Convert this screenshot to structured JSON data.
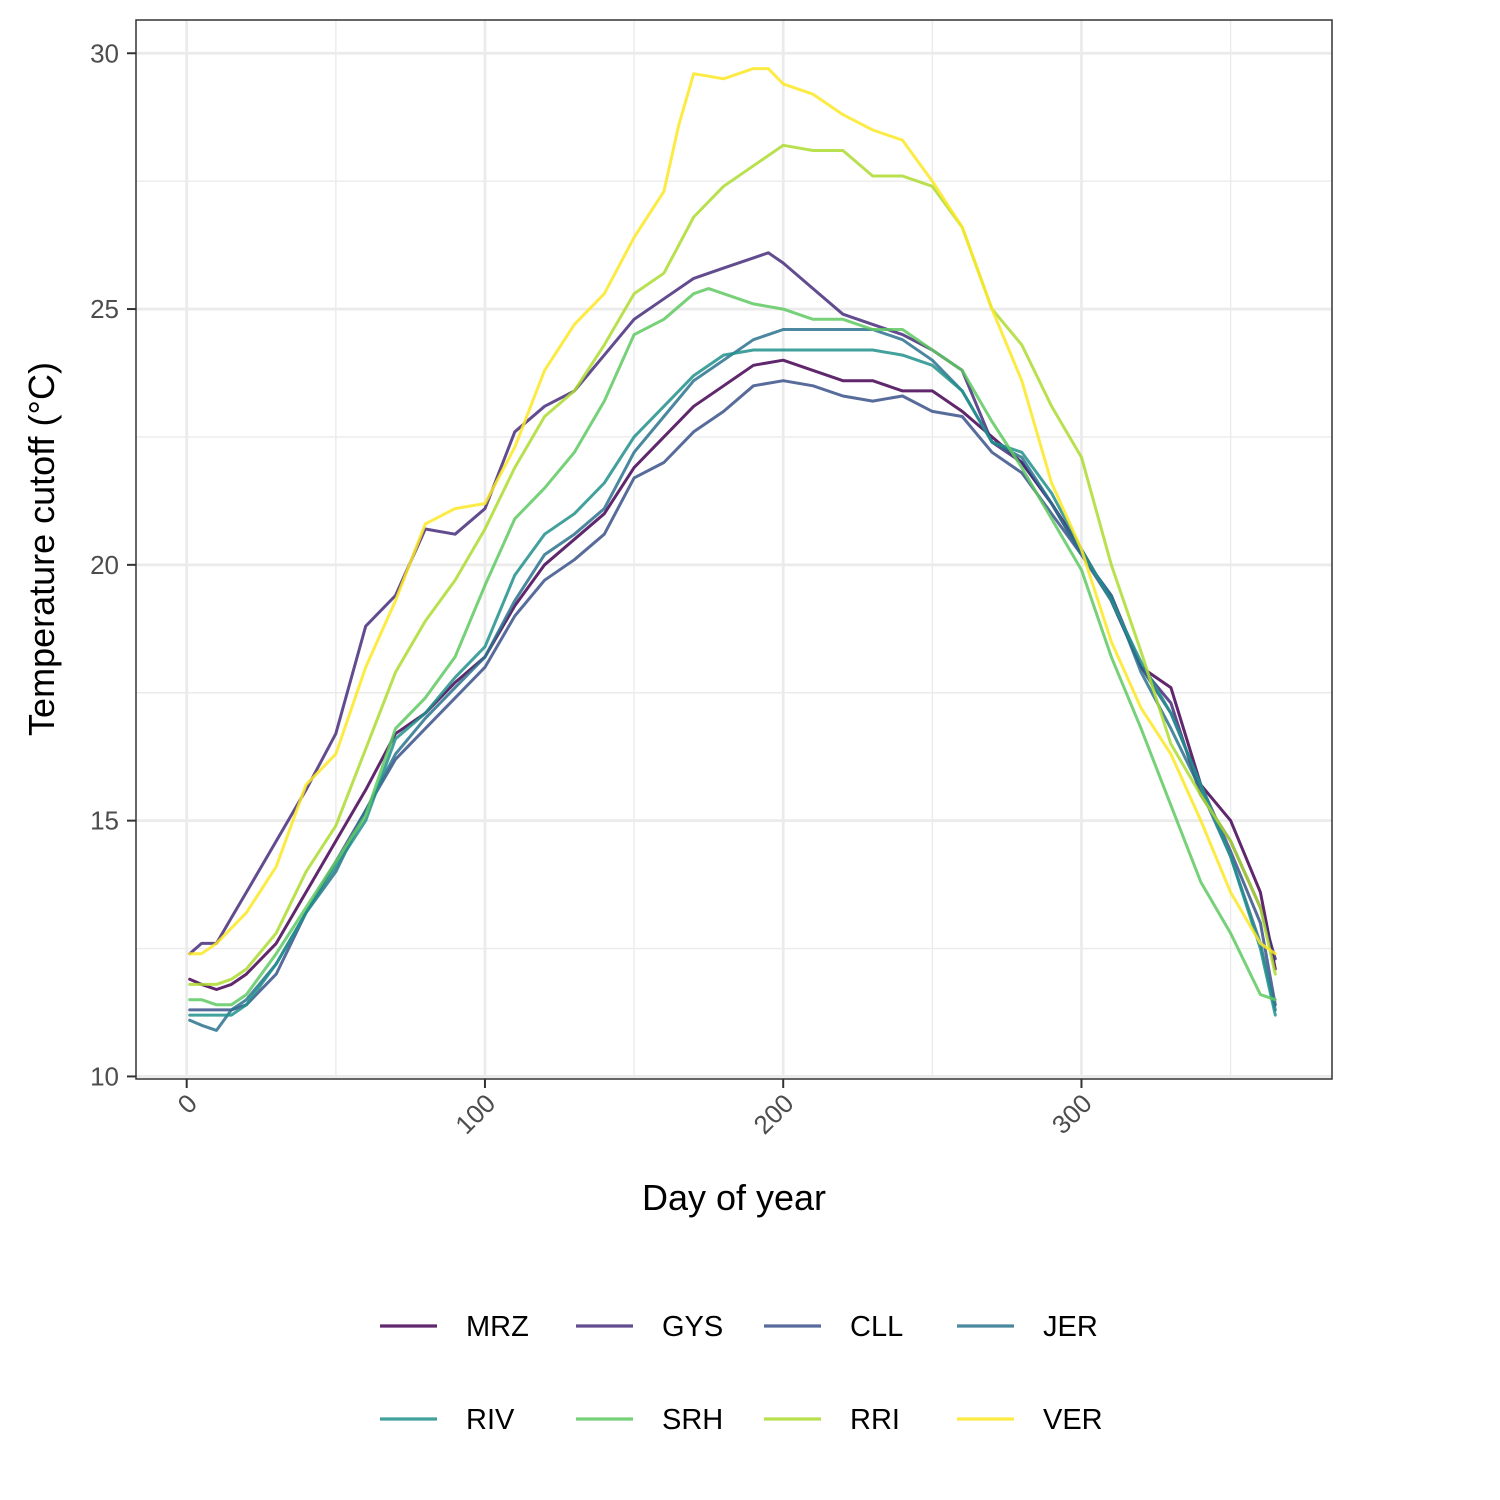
{
  "chart_data": {
    "type": "line",
    "xlabel": "Day of year",
    "ylabel": "Temperature cutoff (°C)",
    "xlim": [
      -17,
      384
    ],
    "ylim": [
      9.95,
      30.65
    ],
    "x_ticks": [
      0,
      100,
      200,
      300
    ],
    "x_tick_labels": [
      "0",
      "100",
      "200",
      "300"
    ],
    "y_ticks": [
      10,
      15,
      20,
      25,
      30
    ],
    "y_tick_labels": [
      "10",
      "15",
      "20",
      "25",
      "30"
    ],
    "grid": true,
    "legend": {
      "position": "bottom"
    },
    "series": [
      {
        "name": "MRZ",
        "color": "#440154",
        "x": [
          1,
          5,
          10,
          15,
          20,
          30,
          40,
          50,
          60,
          70,
          80,
          90,
          100,
          110,
          120,
          130,
          140,
          150,
          160,
          170,
          180,
          190,
          200,
          210,
          220,
          230,
          240,
          250,
          260,
          270,
          280,
          290,
          300,
          310,
          320,
          330,
          340,
          350,
          360,
          365
        ],
        "y": [
          11.9,
          11.8,
          11.7,
          11.8,
          12.0,
          12.6,
          13.6,
          14.6,
          15.6,
          16.7,
          17.1,
          17.7,
          18.2,
          19.2,
          20.0,
          20.5,
          21.0,
          21.9,
          22.5,
          23.1,
          23.5,
          23.9,
          24.0,
          23.8,
          23.6,
          23.6,
          23.4,
          23.4,
          23.0,
          22.5,
          22.0,
          21.2,
          20.3,
          19.3,
          18.0,
          17.6,
          15.7,
          15.0,
          13.6,
          12.1
        ]
      },
      {
        "name": "GYS",
        "color": "#472d7b",
        "x": [
          1,
          5,
          10,
          15,
          20,
          30,
          40,
          50,
          60,
          70,
          80,
          90,
          100,
          110,
          120,
          130,
          140,
          150,
          160,
          170,
          180,
          190,
          195,
          200,
          210,
          220,
          230,
          240,
          250,
          260,
          270,
          280,
          290,
          300,
          310,
          320,
          330,
          340,
          350,
          360,
          365
        ],
        "y": [
          12.4,
          12.6,
          12.6,
          13.1,
          13.6,
          14.6,
          15.6,
          16.7,
          18.8,
          19.4,
          20.7,
          20.6,
          21.1,
          22.6,
          23.1,
          23.4,
          24.1,
          24.8,
          25.2,
          25.6,
          25.8,
          26.0,
          26.1,
          25.9,
          25.4,
          24.9,
          24.7,
          24.5,
          24.2,
          23.8,
          22.4,
          22.0,
          21.2,
          20.2,
          19.4,
          18.0,
          17.3,
          15.5,
          14.6,
          13.3,
          12.3
        ]
      },
      {
        "name": "CLL",
        "color": "#3b528b",
        "x": [
          1,
          5,
          10,
          15,
          20,
          30,
          40,
          50,
          60,
          70,
          80,
          90,
          100,
          110,
          120,
          130,
          140,
          150,
          160,
          170,
          180,
          190,
          200,
          210,
          220,
          230,
          240,
          250,
          260,
          270,
          280,
          290,
          300,
          310,
          320,
          330,
          340,
          350,
          360,
          365
        ],
        "y": [
          11.3,
          11.3,
          11.3,
          11.3,
          11.4,
          12.0,
          13.2,
          14.2,
          15.2,
          16.2,
          16.8,
          17.4,
          18.0,
          19.0,
          19.7,
          20.1,
          20.6,
          21.7,
          22.0,
          22.6,
          23.0,
          23.5,
          23.6,
          23.5,
          23.3,
          23.2,
          23.3,
          23.0,
          22.9,
          22.2,
          21.8,
          21.0,
          20.2,
          19.3,
          18.0,
          17.1,
          15.7,
          14.4,
          13.0,
          11.4
        ]
      },
      {
        "name": "JER",
        "color": "#2c728e",
        "x": [
          1,
          5,
          10,
          15,
          20,
          30,
          40,
          50,
          60,
          70,
          80,
          90,
          100,
          110,
          120,
          130,
          140,
          150,
          160,
          170,
          180,
          190,
          200,
          210,
          220,
          230,
          240,
          250,
          260,
          270,
          280,
          290,
          300,
          310,
          320,
          330,
          340,
          350,
          360,
          365
        ],
        "y": [
          11.1,
          11.0,
          10.9,
          11.3,
          11.5,
          12.2,
          13.2,
          14.0,
          15.2,
          16.3,
          17.0,
          17.6,
          18.2,
          19.3,
          20.2,
          20.6,
          21.1,
          22.2,
          22.9,
          23.6,
          24.0,
          24.4,
          24.6,
          24.6,
          24.6,
          24.6,
          24.4,
          24.0,
          23.4,
          22.4,
          22.1,
          21.2,
          20.2,
          19.4,
          17.9,
          16.8,
          15.6,
          14.3,
          12.6,
          11.3
        ]
      },
      {
        "name": "RIV",
        "color": "#21918c",
        "x": [
          1,
          5,
          10,
          15,
          20,
          30,
          40,
          50,
          60,
          70,
          80,
          90,
          100,
          110,
          120,
          130,
          140,
          150,
          160,
          170,
          180,
          190,
          200,
          210,
          220,
          230,
          240,
          250,
          260,
          270,
          280,
          290,
          300,
          310,
          320,
          330,
          340,
          350,
          360,
          365
        ],
        "y": [
          11.2,
          11.2,
          11.2,
          11.2,
          11.4,
          12.2,
          13.2,
          14.1,
          15.0,
          16.6,
          17.1,
          17.8,
          18.4,
          19.8,
          20.6,
          21.0,
          21.6,
          22.5,
          23.1,
          23.7,
          24.1,
          24.2,
          24.2,
          24.2,
          24.2,
          24.2,
          24.1,
          23.9,
          23.4,
          22.4,
          22.2,
          21.4,
          20.3,
          19.3,
          18.1,
          17.1,
          15.7,
          14.3,
          12.5,
          11.2
        ]
      },
      {
        "name": "SRH",
        "color": "#5ec962",
        "x": [
          1,
          5,
          10,
          15,
          20,
          30,
          40,
          50,
          60,
          70,
          80,
          90,
          100,
          110,
          120,
          130,
          140,
          150,
          160,
          170,
          175,
          180,
          190,
          200,
          210,
          220,
          230,
          240,
          250,
          260,
          270,
          280,
          290,
          300,
          310,
          320,
          330,
          340,
          350,
          360,
          365
        ],
        "y": [
          11.5,
          11.5,
          11.4,
          11.4,
          11.6,
          12.4,
          13.3,
          14.2,
          15.1,
          16.8,
          17.4,
          18.2,
          19.6,
          20.9,
          21.5,
          22.2,
          23.2,
          24.5,
          24.8,
          25.3,
          25.4,
          25.3,
          25.1,
          25.0,
          24.8,
          24.8,
          24.6,
          24.6,
          24.2,
          23.8,
          22.8,
          21.9,
          20.9,
          19.9,
          18.2,
          16.8,
          15.3,
          13.8,
          12.8,
          11.6,
          11.5
        ]
      },
      {
        "name": "RRI",
        "color": "#addc30",
        "x": [
          1,
          5,
          10,
          15,
          20,
          30,
          40,
          50,
          60,
          70,
          80,
          90,
          100,
          110,
          120,
          130,
          140,
          150,
          160,
          170,
          180,
          190,
          200,
          210,
          220,
          230,
          240,
          250,
          260,
          270,
          280,
          290,
          300,
          310,
          320,
          330,
          340,
          350,
          360,
          365
        ],
        "y": [
          11.8,
          11.8,
          11.8,
          11.9,
          12.1,
          12.8,
          14.0,
          14.9,
          16.4,
          17.9,
          18.9,
          19.7,
          20.7,
          21.9,
          22.9,
          23.4,
          24.3,
          25.3,
          25.7,
          26.8,
          27.4,
          27.8,
          28.2,
          28.1,
          28.1,
          27.6,
          27.6,
          27.4,
          26.6,
          25.0,
          24.3,
          23.1,
          22.1,
          20.0,
          18.3,
          16.5,
          15.5,
          14.6,
          13.3,
          12.0
        ]
      },
      {
        "name": "VER",
        "color": "#fde725",
        "x": [
          1,
          5,
          10,
          15,
          20,
          30,
          40,
          50,
          60,
          70,
          80,
          90,
          100,
          110,
          120,
          130,
          140,
          150,
          160,
          165,
          170,
          180,
          190,
          195,
          200,
          210,
          220,
          230,
          240,
          250,
          260,
          270,
          280,
          290,
          300,
          310,
          320,
          330,
          340,
          350,
          360,
          365
        ],
        "y": [
          12.4,
          12.4,
          12.6,
          12.9,
          13.2,
          14.1,
          15.7,
          16.3,
          18.0,
          19.3,
          20.8,
          21.1,
          21.2,
          22.3,
          23.8,
          24.7,
          25.3,
          26.4,
          27.3,
          28.6,
          29.6,
          29.5,
          29.7,
          29.7,
          29.4,
          29.2,
          28.8,
          28.5,
          28.3,
          27.5,
          26.6,
          25.0,
          23.6,
          21.6,
          20.3,
          18.5,
          17.2,
          16.3,
          15.0,
          13.6,
          12.6,
          12.4
        ]
      }
    ]
  }
}
